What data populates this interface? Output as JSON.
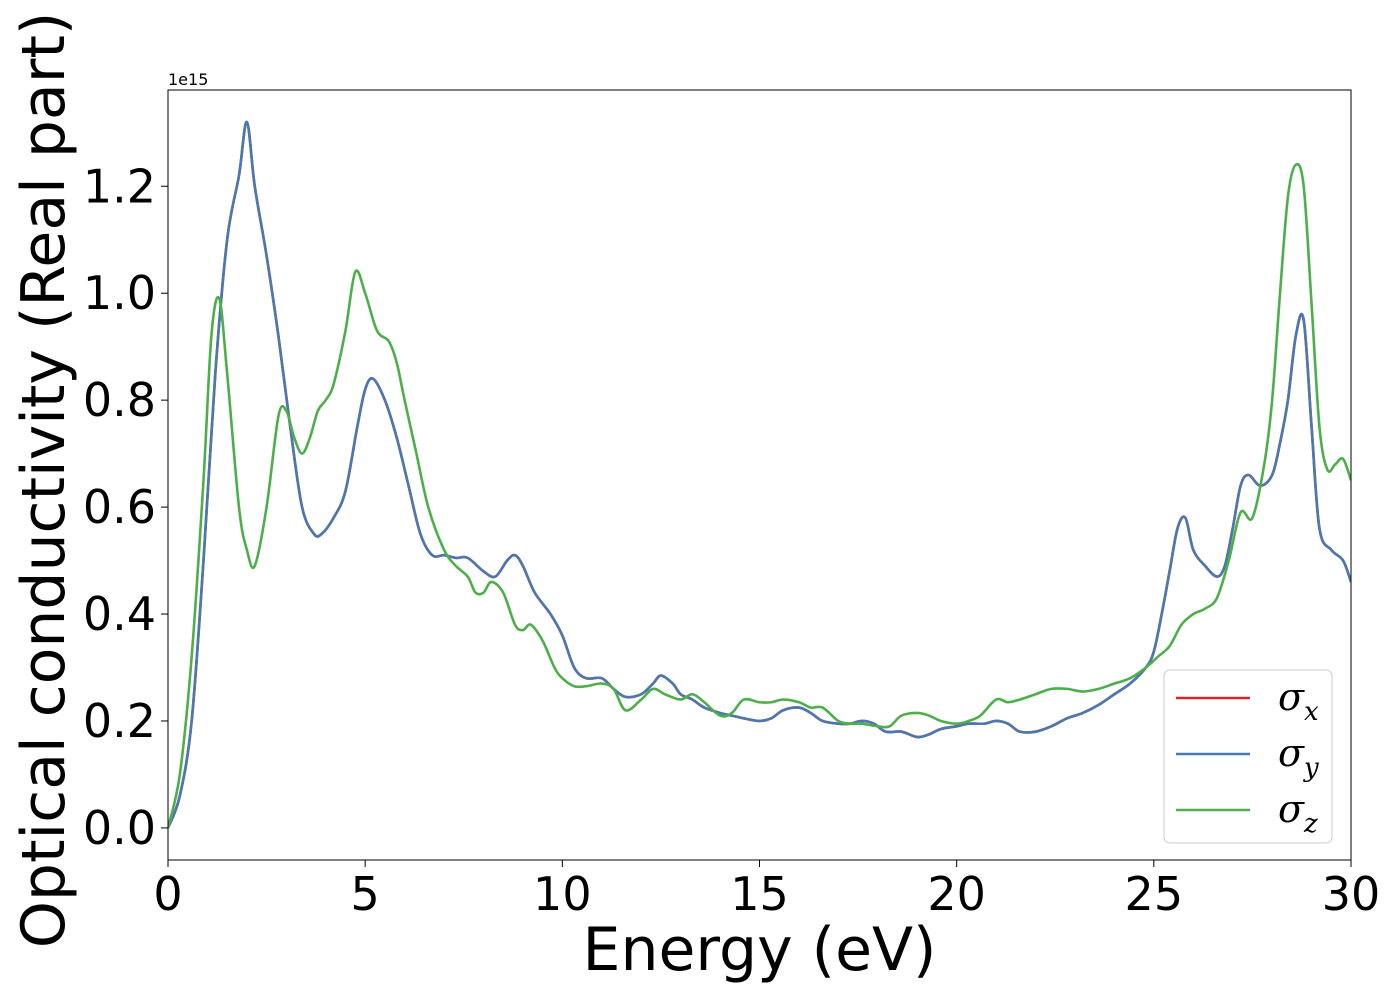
{
  "chart_data": {
    "type": "line",
    "title": "",
    "xlabel": "Energy (eV)",
    "ylabel": "Optical conductivity (Real part)",
    "y_offset_label": "1e15",
    "xlim": [
      0,
      30
    ],
    "ylim": [
      -0.06,
      1.38
    ],
    "xticks": [
      0,
      5,
      10,
      15,
      20,
      25,
      30
    ],
    "yticks": [
      0.0,
      0.2,
      0.4,
      0.6,
      0.8,
      1.0,
      1.2
    ],
    "xtick_labels": [
      "0",
      "5",
      "10",
      "15",
      "20",
      "25",
      "30"
    ],
    "ytick_labels": [
      "0.0",
      "0.2",
      "0.4",
      "0.6",
      "0.8",
      "1.0",
      "1.2"
    ],
    "grid": false,
    "legend_position": "lower-right",
    "series": [
      {
        "name": "σ_x",
        "label_main": "σ",
        "label_sub": "x",
        "color": "#d62728",
        "x": [
          0,
          0.3,
          0.6,
          0.9,
          1.2,
          1.5,
          1.8,
          2.0,
          2.2,
          2.5,
          2.8,
          3.1,
          3.4,
          3.7,
          3.9,
          4.2,
          4.5,
          4.8,
          5.0,
          5.2,
          5.5,
          5.8,
          6.1,
          6.4,
          6.7,
          7.0,
          7.3,
          7.6,
          8.0,
          8.3,
          8.6,
          8.8,
          9.0,
          9.3,
          9.7,
          10.0,
          10.3,
          10.6,
          11.0,
          11.3,
          11.6,
          12.0,
          12.3,
          12.5,
          12.8,
          13.0,
          13.3,
          13.6,
          14.0,
          14.3,
          14.6,
          15.0,
          15.3,
          15.6,
          16.0,
          16.3,
          16.6,
          17.0,
          17.3,
          17.6,
          17.9,
          18.2,
          18.6,
          19.0,
          19.3,
          19.6,
          20.0,
          20.3,
          20.7,
          21.0,
          21.3,
          21.6,
          22.0,
          22.4,
          22.8,
          23.2,
          23.6,
          24.0,
          24.4,
          24.8,
          25.0,
          25.2,
          25.4,
          25.6,
          25.8,
          26.0,
          26.3,
          26.6,
          26.8,
          27.0,
          27.2,
          27.4,
          27.7,
          28.0,
          28.2,
          28.4,
          28.6,
          28.8,
          29.0,
          29.2,
          29.5,
          29.8,
          30.0
        ],
        "y": [
          0,
          0.06,
          0.2,
          0.5,
          0.85,
          1.1,
          1.22,
          1.32,
          1.2,
          1.07,
          0.92,
          0.75,
          0.6,
          0.55,
          0.55,
          0.58,
          0.63,
          0.75,
          0.82,
          0.84,
          0.8,
          0.73,
          0.64,
          0.55,
          0.51,
          0.51,
          0.505,
          0.505,
          0.48,
          0.47,
          0.5,
          0.51,
          0.49,
          0.44,
          0.4,
          0.36,
          0.3,
          0.28,
          0.28,
          0.26,
          0.245,
          0.25,
          0.27,
          0.285,
          0.27,
          0.25,
          0.24,
          0.225,
          0.215,
          0.21,
          0.205,
          0.2,
          0.205,
          0.22,
          0.225,
          0.215,
          0.2,
          0.195,
          0.195,
          0.2,
          0.195,
          0.18,
          0.18,
          0.17,
          0.175,
          0.185,
          0.19,
          0.195,
          0.195,
          0.2,
          0.195,
          0.18,
          0.18,
          0.19,
          0.205,
          0.215,
          0.23,
          0.25,
          0.27,
          0.3,
          0.33,
          0.4,
          0.48,
          0.56,
          0.58,
          0.52,
          0.49,
          0.47,
          0.49,
          0.56,
          0.64,
          0.66,
          0.64,
          0.66,
          0.72,
          0.8,
          0.92,
          0.95,
          0.75,
          0.56,
          0.52,
          0.5,
          0.46
        ]
      },
      {
        "name": "σ_y",
        "label_main": "σ",
        "label_sub": "y",
        "color": "#4a78b0",
        "x": [
          0,
          0.3,
          0.6,
          0.9,
          1.2,
          1.5,
          1.8,
          2.0,
          2.2,
          2.5,
          2.8,
          3.1,
          3.4,
          3.7,
          3.9,
          4.2,
          4.5,
          4.8,
          5.0,
          5.2,
          5.5,
          5.8,
          6.1,
          6.4,
          6.7,
          7.0,
          7.3,
          7.6,
          8.0,
          8.3,
          8.6,
          8.8,
          9.0,
          9.3,
          9.7,
          10.0,
          10.3,
          10.6,
          11.0,
          11.3,
          11.6,
          12.0,
          12.3,
          12.5,
          12.8,
          13.0,
          13.3,
          13.6,
          14.0,
          14.3,
          14.6,
          15.0,
          15.3,
          15.6,
          16.0,
          16.3,
          16.6,
          17.0,
          17.3,
          17.6,
          17.9,
          18.2,
          18.6,
          19.0,
          19.3,
          19.6,
          20.0,
          20.3,
          20.7,
          21.0,
          21.3,
          21.6,
          22.0,
          22.4,
          22.8,
          23.2,
          23.6,
          24.0,
          24.4,
          24.8,
          25.0,
          25.2,
          25.4,
          25.6,
          25.8,
          26.0,
          26.3,
          26.6,
          26.8,
          27.0,
          27.2,
          27.4,
          27.7,
          28.0,
          28.2,
          28.4,
          28.6,
          28.8,
          29.0,
          29.2,
          29.5,
          29.8,
          30.0
        ],
        "y": [
          0,
          0.06,
          0.2,
          0.5,
          0.85,
          1.1,
          1.22,
          1.32,
          1.2,
          1.07,
          0.92,
          0.75,
          0.6,
          0.55,
          0.55,
          0.58,
          0.63,
          0.75,
          0.82,
          0.84,
          0.8,
          0.73,
          0.64,
          0.55,
          0.51,
          0.51,
          0.505,
          0.505,
          0.48,
          0.47,
          0.5,
          0.51,
          0.49,
          0.44,
          0.4,
          0.36,
          0.3,
          0.28,
          0.28,
          0.26,
          0.245,
          0.25,
          0.27,
          0.285,
          0.27,
          0.25,
          0.24,
          0.225,
          0.215,
          0.21,
          0.205,
          0.2,
          0.205,
          0.22,
          0.225,
          0.215,
          0.2,
          0.195,
          0.195,
          0.2,
          0.195,
          0.18,
          0.18,
          0.17,
          0.175,
          0.185,
          0.19,
          0.195,
          0.195,
          0.2,
          0.195,
          0.18,
          0.18,
          0.19,
          0.205,
          0.215,
          0.23,
          0.25,
          0.27,
          0.3,
          0.33,
          0.4,
          0.48,
          0.56,
          0.58,
          0.52,
          0.49,
          0.47,
          0.49,
          0.56,
          0.64,
          0.66,
          0.64,
          0.66,
          0.72,
          0.8,
          0.92,
          0.95,
          0.75,
          0.56,
          0.52,
          0.5,
          0.46
        ]
      },
      {
        "name": "σ_z",
        "label_main": "σ",
        "label_sub": "z",
        "color": "#4daf4a",
        "x": [
          0,
          0.3,
          0.6,
          0.9,
          1.1,
          1.3,
          1.5,
          1.8,
          2.0,
          2.2,
          2.5,
          2.8,
          3.0,
          3.2,
          3.4,
          3.6,
          3.8,
          4.0,
          4.2,
          4.5,
          4.75,
          5.0,
          5.3,
          5.6,
          5.8,
          6.0,
          6.3,
          6.6,
          7.0,
          7.3,
          7.6,
          7.8,
          8.0,
          8.2,
          8.5,
          8.8,
          9.0,
          9.2,
          9.5,
          9.8,
          10.0,
          10.3,
          10.6,
          11.0,
          11.3,
          11.6,
          12.0,
          12.3,
          12.6,
          13.0,
          13.3,
          13.6,
          14.0,
          14.3,
          14.6,
          15.0,
          15.3,
          15.6,
          16.0,
          16.3,
          16.6,
          17.0,
          17.3,
          17.6,
          18.0,
          18.3,
          18.6,
          19.0,
          19.3,
          19.6,
          20.0,
          20.3,
          20.6,
          21.0,
          21.3,
          21.6,
          22.0,
          22.4,
          22.8,
          23.2,
          23.6,
          24.0,
          24.4,
          24.8,
          25.1,
          25.4,
          25.7,
          26.0,
          26.3,
          26.6,
          26.9,
          27.2,
          27.5,
          27.8,
          28.0,
          28.2,
          28.4,
          28.6,
          28.8,
          29.0,
          29.2,
          29.4,
          29.6,
          29.8,
          30.0
        ],
        "y": [
          0,
          0.1,
          0.32,
          0.65,
          0.92,
          0.99,
          0.85,
          0.6,
          0.52,
          0.49,
          0.6,
          0.77,
          0.78,
          0.73,
          0.7,
          0.73,
          0.78,
          0.8,
          0.83,
          0.93,
          1.04,
          1.0,
          0.93,
          0.91,
          0.87,
          0.8,
          0.7,
          0.6,
          0.52,
          0.49,
          0.47,
          0.44,
          0.44,
          0.46,
          0.44,
          0.38,
          0.37,
          0.38,
          0.35,
          0.3,
          0.28,
          0.265,
          0.265,
          0.27,
          0.26,
          0.22,
          0.24,
          0.26,
          0.25,
          0.24,
          0.25,
          0.235,
          0.21,
          0.215,
          0.24,
          0.235,
          0.235,
          0.24,
          0.235,
          0.225,
          0.225,
          0.2,
          0.195,
          0.195,
          0.19,
          0.19,
          0.21,
          0.215,
          0.21,
          0.2,
          0.195,
          0.2,
          0.21,
          0.24,
          0.235,
          0.24,
          0.25,
          0.26,
          0.26,
          0.255,
          0.26,
          0.27,
          0.28,
          0.3,
          0.32,
          0.34,
          0.38,
          0.4,
          0.41,
          0.43,
          0.5,
          0.59,
          0.58,
          0.68,
          0.8,
          1.0,
          1.18,
          1.24,
          1.2,
          0.98,
          0.75,
          0.67,
          0.68,
          0.69,
          0.65
        ]
      }
    ]
  }
}
